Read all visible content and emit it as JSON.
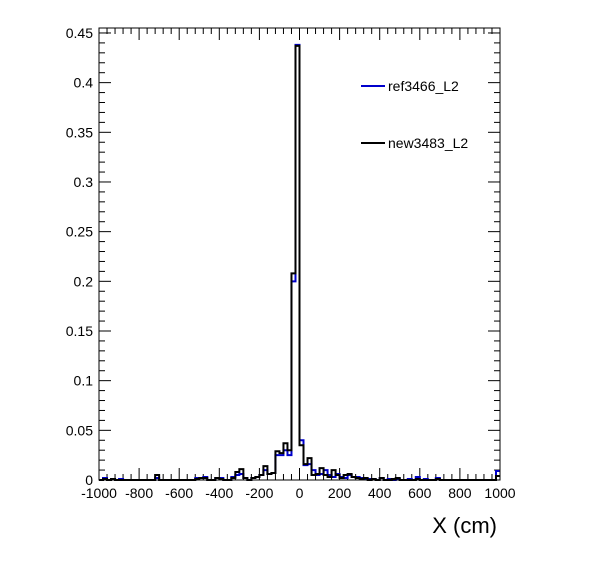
{
  "chart_data": {
    "type": "histogram",
    "title": "",
    "xlabel": "X (cm)",
    "ylabel": "",
    "xlim": [
      -1000,
      1000
    ],
    "ylim": [
      0,
      0.455
    ],
    "bin_width": 20,
    "x_ticks": [
      -1000,
      -800,
      -600,
      -400,
      -200,
      0,
      200,
      400,
      600,
      800,
      1000
    ],
    "x_tick_labels": [
      "-1000",
      "-800",
      "-600",
      "-400",
      "-200",
      "0",
      "200",
      "400",
      "600",
      "800",
      "1000"
    ],
    "y_ticks": [
      0,
      0.05,
      0.1,
      0.15,
      0.2,
      0.25,
      0.3,
      0.35,
      0.4,
      0.45
    ],
    "y_tick_labels": [
      "0",
      "0.05",
      "0.1",
      "0.15",
      "0.2",
      "0.25",
      "0.3",
      "0.35",
      "0.4",
      "0.45"
    ],
    "grid": false,
    "legend_position": "top-right",
    "series": [
      {
        "name": "ref3466_L2",
        "color": "#0000cc",
        "bins": [
          {
            "x": -1000,
            "y": 0.0
          },
          {
            "x": -980,
            "y": 0.002
          },
          {
            "x": -960,
            "y": 0.0
          },
          {
            "x": -940,
            "y": 0.001
          },
          {
            "x": -920,
            "y": 0.0
          },
          {
            "x": -900,
            "y": 0.001
          },
          {
            "x": -880,
            "y": 0.0
          },
          {
            "x": -860,
            "y": 0.0
          },
          {
            "x": -840,
            "y": 0.0
          },
          {
            "x": -820,
            "y": 0.0
          },
          {
            "x": -800,
            "y": 0.0
          },
          {
            "x": -780,
            "y": 0.0
          },
          {
            "x": -760,
            "y": 0.0
          },
          {
            "x": -740,
            "y": 0.0
          },
          {
            "x": -720,
            "y": 0.002
          },
          {
            "x": -700,
            "y": 0.0
          },
          {
            "x": -680,
            "y": 0.0
          },
          {
            "x": -660,
            "y": 0.0
          },
          {
            "x": -640,
            "y": 0.0
          },
          {
            "x": -620,
            "y": 0.0
          },
          {
            "x": -600,
            "y": 0.0
          },
          {
            "x": -580,
            "y": 0.0
          },
          {
            "x": -560,
            "y": 0.0
          },
          {
            "x": -540,
            "y": 0.0
          },
          {
            "x": -520,
            "y": 0.002
          },
          {
            "x": -500,
            "y": 0.002
          },
          {
            "x": -480,
            "y": 0.003
          },
          {
            "x": -460,
            "y": 0.0
          },
          {
            "x": -440,
            "y": 0.0
          },
          {
            "x": -420,
            "y": 0.002
          },
          {
            "x": -400,
            "y": 0.002
          },
          {
            "x": -380,
            "y": 0.0
          },
          {
            "x": -360,
            "y": 0.0
          },
          {
            "x": -340,
            "y": 0.003
          },
          {
            "x": -320,
            "y": 0.005
          },
          {
            "x": -300,
            "y": 0.006
          },
          {
            "x": -280,
            "y": 0.002
          },
          {
            "x": -260,
            "y": 0.0
          },
          {
            "x": -240,
            "y": 0.002
          },
          {
            "x": -220,
            "y": 0.003
          },
          {
            "x": -200,
            "y": 0.005
          },
          {
            "x": -180,
            "y": 0.01
          },
          {
            "x": -160,
            "y": 0.006
          },
          {
            "x": -140,
            "y": 0.007
          },
          {
            "x": -120,
            "y": 0.025
          },
          {
            "x": -100,
            "y": 0.025
          },
          {
            "x": -80,
            "y": 0.03
          },
          {
            "x": -60,
            "y": 0.025
          },
          {
            "x": -40,
            "y": 0.2
          },
          {
            "x": -20,
            "y": 0.438
          },
          {
            "x": 0,
            "y": 0.04
          },
          {
            "x": 20,
            "y": 0.015
          },
          {
            "x": 40,
            "y": 0.016
          },
          {
            "x": 60,
            "y": 0.01
          },
          {
            "x": 80,
            "y": 0.005
          },
          {
            "x": 100,
            "y": 0.006
          },
          {
            "x": 120,
            "y": 0.01
          },
          {
            "x": 140,
            "y": 0.005
          },
          {
            "x": 160,
            "y": 0.003
          },
          {
            "x": 180,
            "y": 0.006
          },
          {
            "x": 200,
            "y": 0.003
          },
          {
            "x": 220,
            "y": 0.002
          },
          {
            "x": 240,
            "y": 0.005
          },
          {
            "x": 260,
            "y": 0.003
          },
          {
            "x": 280,
            "y": 0.003
          },
          {
            "x": 300,
            "y": 0.002
          },
          {
            "x": 320,
            "y": 0.001
          },
          {
            "x": 340,
            "y": 0.001
          },
          {
            "x": 360,
            "y": 0.001
          },
          {
            "x": 380,
            "y": 0.0
          },
          {
            "x": 400,
            "y": 0.002
          },
          {
            "x": 420,
            "y": 0.0
          },
          {
            "x": 440,
            "y": 0.001
          },
          {
            "x": 460,
            "y": 0.0
          },
          {
            "x": 480,
            "y": 0.001
          },
          {
            "x": 500,
            "y": 0.0
          },
          {
            "x": 520,
            "y": 0.0
          },
          {
            "x": 540,
            "y": 0.001
          },
          {
            "x": 560,
            "y": 0.0
          },
          {
            "x": 580,
            "y": 0.003
          },
          {
            "x": 600,
            "y": 0.0
          },
          {
            "x": 620,
            "y": 0.001
          },
          {
            "x": 640,
            "y": 0.0
          },
          {
            "x": 660,
            "y": 0.0
          },
          {
            "x": 680,
            "y": 0.002
          },
          {
            "x": 700,
            "y": 0.0
          },
          {
            "x": 720,
            "y": 0.0
          },
          {
            "x": 740,
            "y": 0.0
          },
          {
            "x": 760,
            "y": 0.0
          },
          {
            "x": 780,
            "y": 0.0
          },
          {
            "x": 800,
            "y": 0.0
          },
          {
            "x": 820,
            "y": 0.0
          },
          {
            "x": 840,
            "y": 0.0
          },
          {
            "x": 860,
            "y": 0.0
          },
          {
            "x": 880,
            "y": 0.0
          },
          {
            "x": 900,
            "y": 0.0
          },
          {
            "x": 920,
            "y": 0.0
          },
          {
            "x": 940,
            "y": 0.0
          },
          {
            "x": 960,
            "y": 0.0
          },
          {
            "x": 980,
            "y": 0.009
          }
        ]
      },
      {
        "name": "new3483_L2",
        "color": "#000000",
        "bins": [
          {
            "x": -1000,
            "y": 0.0
          },
          {
            "x": -980,
            "y": 0.001
          },
          {
            "x": -960,
            "y": 0.0
          },
          {
            "x": -940,
            "y": 0.001
          },
          {
            "x": -920,
            "y": 0.0
          },
          {
            "x": -900,
            "y": 0.0
          },
          {
            "x": -880,
            "y": 0.0
          },
          {
            "x": -860,
            "y": 0.0
          },
          {
            "x": -840,
            "y": 0.0
          },
          {
            "x": -820,
            "y": 0.0
          },
          {
            "x": -800,
            "y": 0.0
          },
          {
            "x": -780,
            "y": 0.0
          },
          {
            "x": -760,
            "y": 0.0
          },
          {
            "x": -740,
            "y": 0.0
          },
          {
            "x": -720,
            "y": 0.005
          },
          {
            "x": -700,
            "y": 0.0
          },
          {
            "x": -680,
            "y": 0.0
          },
          {
            "x": -660,
            "y": 0.0
          },
          {
            "x": -640,
            "y": 0.0
          },
          {
            "x": -620,
            "y": 0.0
          },
          {
            "x": -600,
            "y": 0.0
          },
          {
            "x": -580,
            "y": 0.0
          },
          {
            "x": -560,
            "y": 0.0
          },
          {
            "x": -540,
            "y": 0.0
          },
          {
            "x": -520,
            "y": 0.001
          },
          {
            "x": -500,
            "y": 0.002
          },
          {
            "x": -480,
            "y": 0.002
          },
          {
            "x": -460,
            "y": 0.0
          },
          {
            "x": -440,
            "y": 0.0
          },
          {
            "x": -420,
            "y": 0.002
          },
          {
            "x": -400,
            "y": 0.001
          },
          {
            "x": -380,
            "y": 0.0
          },
          {
            "x": -360,
            "y": 0.0
          },
          {
            "x": -340,
            "y": 0.002
          },
          {
            "x": -320,
            "y": 0.008
          },
          {
            "x": -300,
            "y": 0.011
          },
          {
            "x": -280,
            "y": 0.002
          },
          {
            "x": -260,
            "y": 0.0
          },
          {
            "x": -240,
            "y": 0.002
          },
          {
            "x": -220,
            "y": 0.003
          },
          {
            "x": -200,
            "y": 0.005
          },
          {
            "x": -180,
            "y": 0.014
          },
          {
            "x": -160,
            "y": 0.006
          },
          {
            "x": -140,
            "y": 0.007
          },
          {
            "x": -120,
            "y": 0.029
          },
          {
            "x": -100,
            "y": 0.027
          },
          {
            "x": -80,
            "y": 0.037
          },
          {
            "x": -60,
            "y": 0.03
          },
          {
            "x": -40,
            "y": 0.208
          },
          {
            "x": -20,
            "y": 0.437
          },
          {
            "x": 0,
            "y": 0.035
          },
          {
            "x": 20,
            "y": 0.016
          },
          {
            "x": 40,
            "y": 0.022
          },
          {
            "x": 60,
            "y": 0.005
          },
          {
            "x": 80,
            "y": 0.006
          },
          {
            "x": 100,
            "y": 0.012
          },
          {
            "x": 120,
            "y": 0.005
          },
          {
            "x": 140,
            "y": 0.003
          },
          {
            "x": 160,
            "y": 0.01
          },
          {
            "x": 180,
            "y": 0.005
          },
          {
            "x": 200,
            "y": 0.002
          },
          {
            "x": 220,
            "y": 0.005
          },
          {
            "x": 240,
            "y": 0.006
          },
          {
            "x": 260,
            "y": 0.003
          },
          {
            "x": 280,
            "y": 0.002
          },
          {
            "x": 300,
            "y": 0.001
          },
          {
            "x": 320,
            "y": 0.002
          },
          {
            "x": 340,
            "y": 0.0
          },
          {
            "x": 360,
            "y": 0.001
          },
          {
            "x": 380,
            "y": 0.0
          },
          {
            "x": 400,
            "y": 0.002
          },
          {
            "x": 420,
            "y": 0.0
          },
          {
            "x": 440,
            "y": 0.0
          },
          {
            "x": 460,
            "y": 0.001
          },
          {
            "x": 480,
            "y": 0.002
          },
          {
            "x": 500,
            "y": 0.0
          },
          {
            "x": 520,
            "y": 0.0
          },
          {
            "x": 540,
            "y": 0.0
          },
          {
            "x": 560,
            "y": 0.0
          },
          {
            "x": 580,
            "y": 0.001
          },
          {
            "x": 600,
            "y": 0.0
          },
          {
            "x": 620,
            "y": 0.0
          },
          {
            "x": 640,
            "y": 0.0
          },
          {
            "x": 660,
            "y": 0.0
          },
          {
            "x": 680,
            "y": 0.001
          },
          {
            "x": 700,
            "y": 0.0
          },
          {
            "x": 720,
            "y": 0.0
          },
          {
            "x": 740,
            "y": 0.0
          },
          {
            "x": 760,
            "y": 0.0
          },
          {
            "x": 780,
            "y": 0.0
          },
          {
            "x": 800,
            "y": 0.0
          },
          {
            "x": 820,
            "y": 0.0
          },
          {
            "x": 840,
            "y": 0.0
          },
          {
            "x": 860,
            "y": 0.0
          },
          {
            "x": 880,
            "y": 0.0
          },
          {
            "x": 900,
            "y": 0.0
          },
          {
            "x": 920,
            "y": 0.0
          },
          {
            "x": 940,
            "y": 0.0
          },
          {
            "x": 960,
            "y": 0.0
          },
          {
            "x": 980,
            "y": 0.004
          }
        ]
      }
    ]
  }
}
